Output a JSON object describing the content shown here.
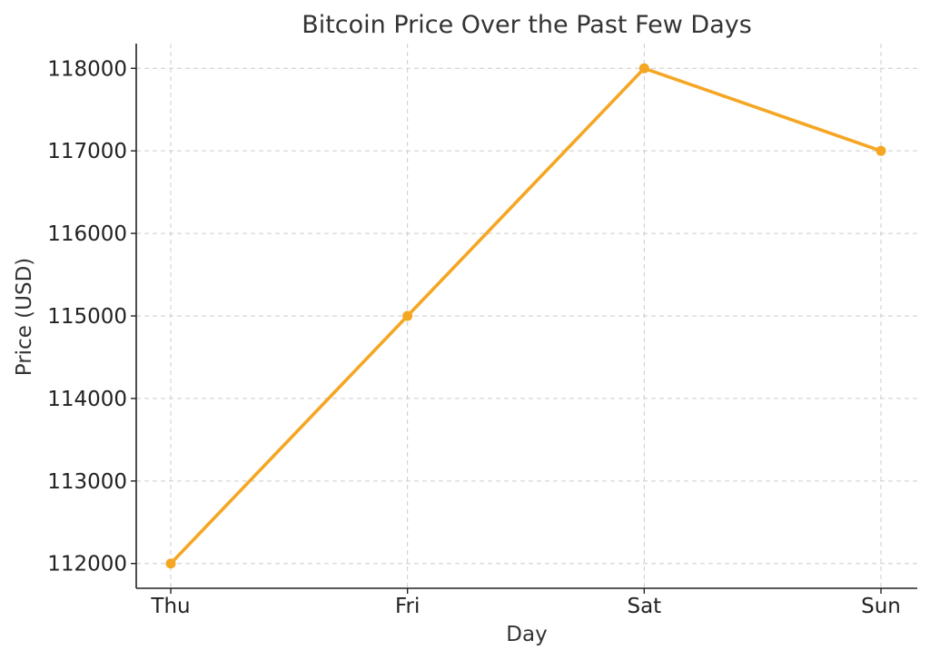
{
  "chart_data": {
    "type": "line",
    "title": "Bitcoin Price Over the Past Few Days",
    "xlabel": "Day",
    "ylabel": "Price (USD)",
    "categories": [
      "Thu",
      "Fri",
      "Sat",
      "Sun"
    ],
    "series": [
      {
        "values": [
          112000,
          115000,
          118000,
          117000
        ],
        "color": "#f5a623",
        "marker": "circle"
      }
    ],
    "yticks": [
      112000,
      113000,
      114000,
      115000,
      116000,
      117000,
      118000
    ],
    "ylim": [
      111700,
      118300
    ],
    "grid": true,
    "legend": "none"
  }
}
